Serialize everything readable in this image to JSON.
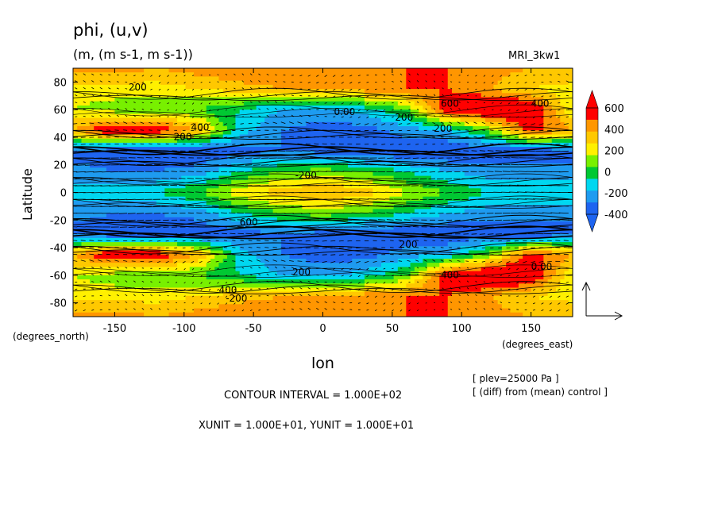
{
  "chart_data": {
    "type": "heatmap",
    "title": "phi, (u,v)",
    "subtitle": "(m, (m s-1, m s-1))",
    "model_label": "MRI_3kw1",
    "xlabel": "lon",
    "ylabel": "Latitude",
    "x_units": "(degrees_east)",
    "y_units": "(degrees_north)",
    "xlim": [
      -180,
      180
    ],
    "ylim": [
      -90,
      90
    ],
    "x_ticks": [
      -150,
      -100,
      -50,
      0,
      50,
      100,
      150
    ],
    "x_tick_labels": [
      "-150",
      "-100",
      "-50",
      "0",
      "50",
      "100",
      "150"
    ],
    "y_ticks": [
      -80,
      -60,
      -40,
      -20,
      0,
      20,
      40,
      60,
      80
    ],
    "y_tick_labels": [
      "-80",
      "-60",
      "-40",
      "-20",
      "0",
      "20",
      "40",
      "60",
      "80"
    ],
    "colorbar": {
      "levels": [
        -400,
        -300,
        -200,
        -100,
        0,
        100,
        200,
        300,
        400,
        500,
        600
      ],
      "tick_labels": [
        "600",
        "400",
        "200",
        "0",
        "-200",
        "-400"
      ],
      "colors": [
        "#1e64f0",
        "#1e9bf0",
        "#00d7f0",
        "#00c832",
        "#78f000",
        "#fff000",
        "#ffc800",
        "#ff9600",
        "#ff0000"
      ]
    },
    "grid_lons": [
      -180,
      -150,
      -120,
      -90,
      -60,
      -30,
      0,
      30,
      60,
      90,
      120,
      150,
      180
    ],
    "grid_lats": [
      90,
      75,
      60,
      45,
      30,
      15,
      0,
      -15,
      -30,
      -45,
      -60,
      -75,
      -90
    ],
    "values": [
      [
        350,
        350,
        300,
        350,
        400,
        400,
        400,
        400,
        400,
        400,
        350,
        300,
        300
      ],
      [
        150,
        150,
        150,
        200,
        250,
        300,
        350,
        350,
        400,
        400,
        300,
        200,
        150
      ],
      [
        100,
        50,
        0,
        0,
        -100,
        -200,
        -250,
        -150,
        0,
        500,
        600,
        550,
        100
      ],
      [
        300,
        550,
        500,
        300,
        -150,
        -300,
        -350,
        -350,
        -250,
        -200,
        50,
        450,
        300
      ],
      [
        -350,
        -400,
        -400,
        -400,
        -350,
        -300,
        -350,
        -400,
        -400,
        -400,
        -400,
        -400,
        -350
      ],
      [
        -250,
        -300,
        -300,
        -250,
        -100,
        0,
        50,
        0,
        -100,
        -200,
        -250,
        -250,
        -250
      ],
      [
        -150,
        -150,
        -100,
        0,
        150,
        250,
        300,
        250,
        100,
        0,
        -100,
        -150,
        -150
      ],
      [
        -250,
        -300,
        -300,
        -250,
        -100,
        0,
        50,
        0,
        -100,
        -200,
        -250,
        -250,
        -250
      ],
      [
        -350,
        -400,
        -400,
        -400,
        -350,
        -300,
        -350,
        -400,
        -400,
        -400,
        -400,
        -400,
        -350
      ],
      [
        300,
        550,
        500,
        300,
        -150,
        -300,
        -350,
        -350,
        -250,
        -200,
        50,
        450,
        300
      ],
      [
        100,
        50,
        0,
        0,
        -100,
        -200,
        -250,
        -150,
        0,
        500,
        600,
        550,
        100
      ],
      [
        150,
        150,
        150,
        200,
        250,
        300,
        350,
        350,
        400,
        400,
        300,
        200,
        150
      ],
      [
        350,
        350,
        300,
        350,
        400,
        400,
        400,
        400,
        400,
        400,
        350,
        300,
        300
      ]
    ],
    "contour_labels": [
      "200",
      "600",
      "400",
      "200",
      "0.00",
      "400",
      "-200",
      "200",
      "600",
      "400",
      "200",
      "0.00",
      "200",
      "400",
      "-200",
      "-200"
    ],
    "reference_vector": {
      "xunit": 10,
      "yunit": 10
    },
    "legend": "right colorbar"
  },
  "footer": {
    "contour_interval": "CONTOUR INTERVAL = 1.000E+02",
    "units": "XUNIT = 1.000E+01, YUNIT = 1.000E+01",
    "plev": "[ plev=25000 Pa ]",
    "diff": "[ (diff) from (mean) control ]"
  }
}
